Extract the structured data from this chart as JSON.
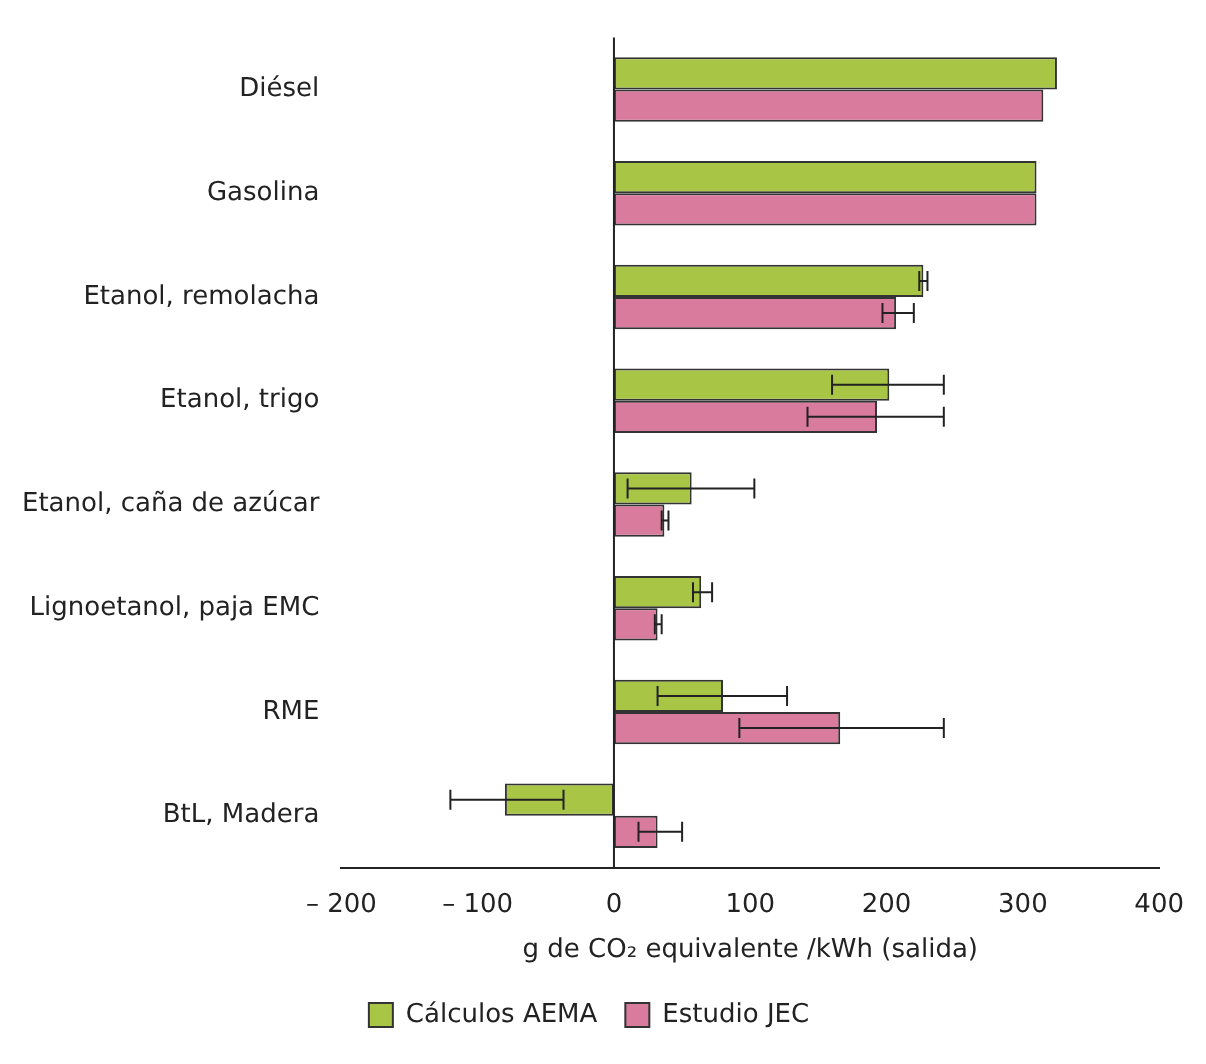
{
  "chart_data": {
    "type": "bar",
    "orientation": "horizontal",
    "xlabel": "g de CO₂ equivalente /kWh (salida)",
    "categories": [
      "Diésel",
      "Gasolina",
      "Etanol, remolacha",
      "Etanol, trigo",
      "Etanol, caña de azúcar",
      "Lignoetanol, paja EMC",
      "RME",
      "BtL, Madera"
    ],
    "series": [
      {
        "name": "Cálculos AEMA",
        "color": "#a9c546",
        "values": [
          325,
          310,
          227,
          202,
          57,
          64,
          80,
          -80
        ],
        "errors": [
          null,
          null,
          [
            224,
            230
          ],
          [
            160,
            242
          ],
          [
            10,
            103
          ],
          [
            58,
            72
          ],
          [
            32,
            127
          ],
          [
            -120,
            -37
          ]
        ]
      },
      {
        "name": "Estudio JEC",
        "color": "#d97b9c",
        "values": [
          315,
          310,
          207,
          193,
          37,
          32,
          166,
          32
        ],
        "errors": [
          null,
          null,
          [
            197,
            220
          ],
          [
            142,
            242
          ],
          [
            35,
            40
          ],
          [
            30,
            35
          ],
          [
            92,
            242
          ],
          [
            18,
            50
          ]
        ]
      }
    ],
    "xlim": [
      -200,
      400
    ],
    "xticks": [
      {
        "value": -200,
        "label": "– 200"
      },
      {
        "value": -100,
        "label": "– 100"
      },
      0,
      100,
      200,
      300,
      400
    ],
    "legend": "bottom"
  }
}
